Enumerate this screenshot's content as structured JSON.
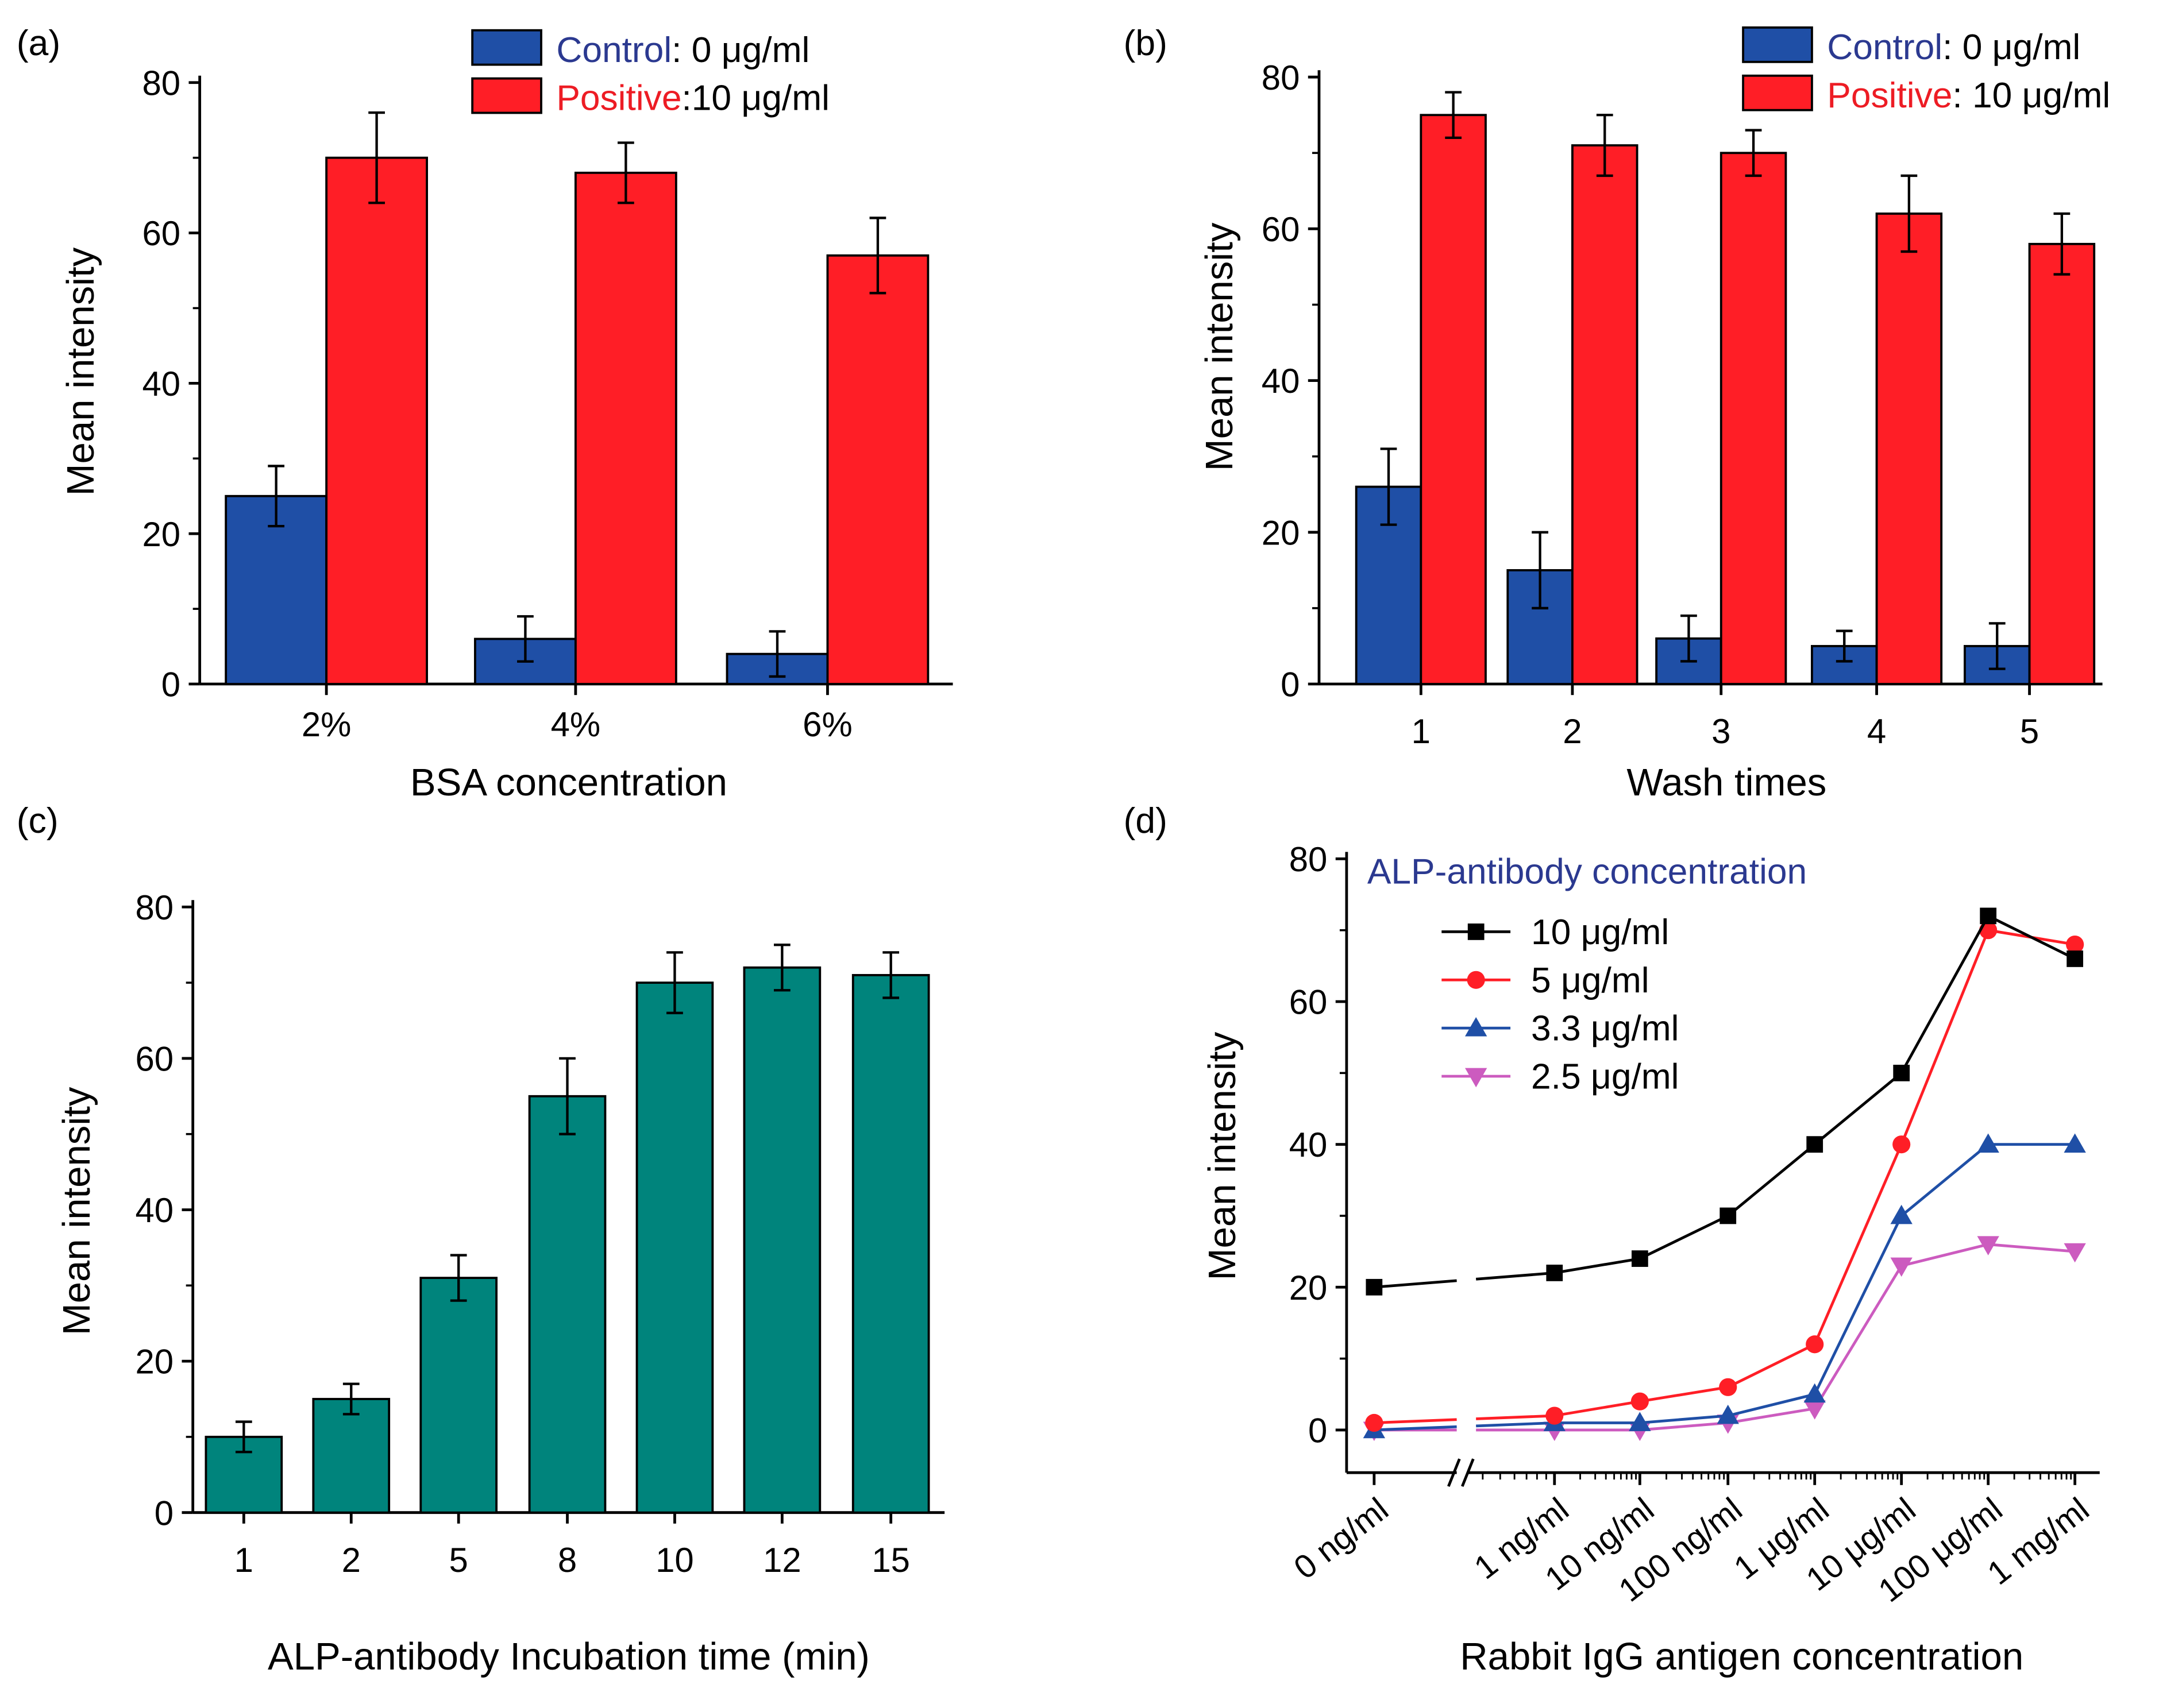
{
  "chart_data": [
    {
      "panel": "(a)",
      "type": "bar",
      "categories": [
        "2%",
        "4%",
        "6%"
      ],
      "xlabel": "BSA concentration",
      "ylabel": "Mean intensity",
      "ylim": [
        0,
        80
      ],
      "yticks": [
        0,
        20,
        40,
        60,
        80
      ],
      "legend_position": "top-right",
      "series": [
        {
          "name": "Control",
          "name_suffix": ": 0 μg/ml",
          "name_color": "#2B3990",
          "color": "#1F4FA6",
          "values": [
            25,
            6,
            4
          ],
          "errors": [
            4,
            3,
            3
          ]
        },
        {
          "name": "Positive",
          "name_suffix": ":10 μg/ml",
          "name_color": "#ED1C24",
          "color": "#FF1E26",
          "values": [
            70,
            68,
            57
          ],
          "errors": [
            6,
            4,
            5
          ]
        }
      ]
    },
    {
      "panel": "(b)",
      "type": "bar",
      "categories": [
        "1",
        "2",
        "3",
        "4",
        "5"
      ],
      "xlabel": "Wash times",
      "ylabel": "Mean intensity",
      "ylim": [
        0,
        80
      ],
      "yticks": [
        0,
        20,
        40,
        60,
        80
      ],
      "legend_position": "top-right",
      "series": [
        {
          "name": "Control",
          "name_suffix": ": 0 μg/ml",
          "name_color": "#2B3990",
          "color": "#1F4FA6",
          "values": [
            26,
            15,
            6,
            5,
            5
          ],
          "errors": [
            5,
            5,
            3,
            2,
            3
          ]
        },
        {
          "name": "Positive",
          "name_suffix": ": 10 μg/ml",
          "name_color": "#ED1C24",
          "color": "#FF1E26",
          "values": [
            75,
            71,
            70,
            62,
            58
          ],
          "errors": [
            3,
            4,
            3,
            5,
            4
          ]
        }
      ]
    },
    {
      "panel": "(c)",
      "type": "bar",
      "categories": [
        "1",
        "2",
        "5",
        "8",
        "10",
        "12",
        "15"
      ],
      "xlabel": "ALP-antibody Incubation time (min)",
      "ylabel": "Mean intensity",
      "ylim": [
        0,
        80
      ],
      "yticks": [
        0,
        20,
        40,
        60,
        80
      ],
      "series": [
        {
          "color": "#00847C",
          "values": [
            10,
            15,
            31,
            55,
            70,
            72,
            71
          ],
          "errors": [
            2,
            2,
            3,
            5,
            4,
            3,
            3
          ]
        }
      ]
    },
    {
      "panel": "(d)",
      "type": "line",
      "categories": [
        "0 ng/ml",
        "1 ng/ml",
        "10 ng/ml",
        "100 ng/ml",
        "1 μg/ml",
        "10 μg/ml",
        "100 μg/ml",
        "1 mg/ml"
      ],
      "x_scale": "log with axis break",
      "xlabel": "Rabbit IgG antigen concentration",
      "ylabel": "Mean intensity",
      "ylim": [
        0,
        80
      ],
      "yticks": [
        0,
        20,
        40,
        60,
        80
      ],
      "legend_title": "ALP-antibody concentration",
      "legend_position": "top-left",
      "series": [
        {
          "name": "10 μg/ml",
          "color": "#000000",
          "marker": "square",
          "values": [
            20,
            22,
            24,
            30,
            40,
            50,
            72,
            66
          ]
        },
        {
          "name": "5 μg/ml",
          "color": "#FF1E26",
          "marker": "circle",
          "values": [
            1,
            2,
            4,
            6,
            12,
            40,
            70,
            68
          ]
        },
        {
          "name": "3.3 μg/ml",
          "color": "#1F4FA6",
          "marker": "triangle-up",
          "values": [
            0,
            1,
            1,
            2,
            5,
            30,
            40,
            40
          ]
        },
        {
          "name": "2.5 μg/ml",
          "color": "#CC5BBF",
          "marker": "triangle-down",
          "values": [
            0,
            0,
            0,
            1,
            3,
            23,
            26,
            25
          ]
        }
      ]
    }
  ]
}
